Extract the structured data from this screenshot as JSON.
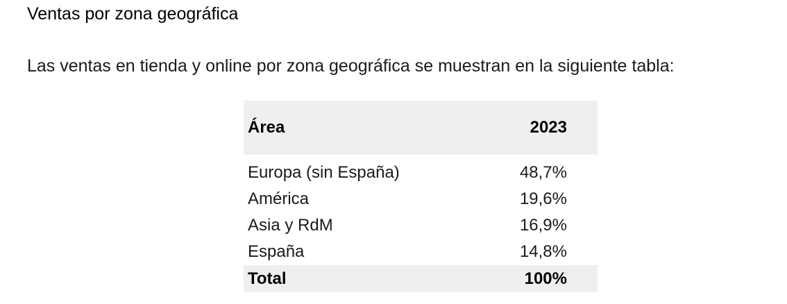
{
  "heading": "Ventas por zona geográfica",
  "intro": "Las ventas en tienda y online por zona geográfica se muestran en la siguiente tabla:",
  "table": {
    "columns": [
      "Área",
      "2023"
    ],
    "rows": [
      {
        "area": "Europa (sin España)",
        "value": "48,7%"
      },
      {
        "area": "América",
        "value": "19,6%"
      },
      {
        "area": "Asia y RdM",
        "value": "16,9%"
      },
      {
        "area": "España",
        "value": "14,8%"
      }
    ],
    "total": {
      "label": "Total",
      "value": "100%"
    }
  }
}
